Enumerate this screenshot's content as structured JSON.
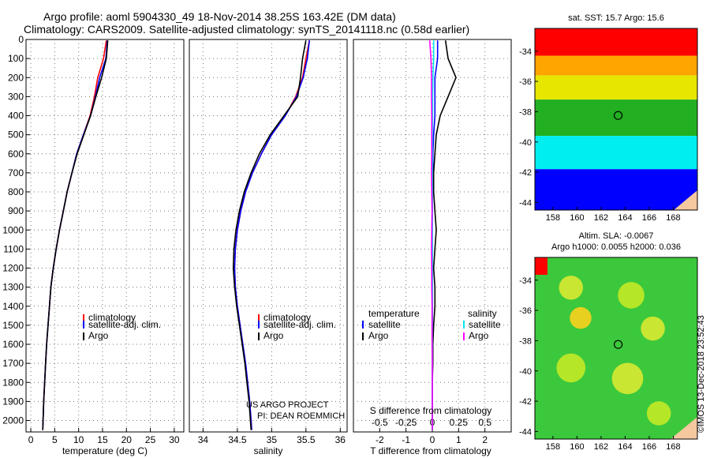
{
  "header": {
    "title_line1": "Argo profile: aoml 5904330_49 18-Nov-2014 38.25S 163.42E (DM data)",
    "title_line2": "Climatology: CARS2009. Satellite-adjusted climatology: synTS_20141118.nc (0.58d earlier)"
  },
  "colors": {
    "climatology": "#ff0000",
    "satellite": "#0000ff",
    "argo": "#000000",
    "satellite_s": "#00e5ee",
    "argo_s": "#ff00ff"
  },
  "chart_data": [
    {
      "type": "line",
      "name": "temperature",
      "xlabel": "temperature (deg C)",
      "xlim": [
        -1,
        32
      ],
      "ylim": [
        2060,
        0
      ],
      "xticks": [
        0,
        5,
        10,
        15,
        20,
        25,
        30
      ],
      "yticks": [
        0,
        100,
        200,
        300,
        400,
        500,
        600,
        700,
        800,
        900,
        1000,
        1100,
        1200,
        1300,
        1400,
        1500,
        1600,
        1700,
        1800,
        1900,
        2000
      ],
      "grid": true,
      "legend": [
        "climatology",
        "satellite-adj. clim.",
        "Argo"
      ],
      "series": [
        {
          "name": "climatology",
          "color": "#ff0000",
          "x": [
            15.8,
            15.2,
            14.0,
            13.3,
            12.4,
            11.0,
            9.6,
            8.6,
            7.6,
            6.8,
            6.0,
            5.3,
            4.7,
            4.2,
            3.9,
            3.6,
            3.3,
            3.1,
            2.9,
            2.7,
            2.5
          ],
          "y": [
            5,
            100,
            200,
            300,
            400,
            500,
            600,
            700,
            800,
            900,
            1000,
            1100,
            1200,
            1300,
            1400,
            1500,
            1600,
            1700,
            1800,
            1900,
            2050
          ]
        },
        {
          "name": "satellite-adj. clim.",
          "color": "#0000ff",
          "x": [
            16.0,
            15.7,
            14.4,
            13.5,
            12.5,
            11.0,
            9.6,
            8.6,
            7.6,
            6.8,
            6.0,
            5.3,
            4.7,
            4.2,
            3.9,
            3.6,
            3.3,
            3.1,
            2.9,
            2.7,
            2.5
          ],
          "y": [
            5,
            100,
            200,
            300,
            400,
            500,
            600,
            700,
            800,
            900,
            1000,
            1100,
            1200,
            1300,
            1400,
            1500,
            1600,
            1700,
            1800,
            1900,
            2050
          ]
        },
        {
          "name": "Argo",
          "color": "#000000",
          "x": [
            16.1,
            15.8,
            14.8,
            13.6,
            12.5,
            11.1,
            9.7,
            8.6,
            7.6,
            6.8,
            6.0,
            5.3,
            4.7,
            4.2,
            3.9,
            3.6,
            3.3,
            3.1,
            2.9,
            2.7,
            2.5
          ],
          "y": [
            5,
            100,
            200,
            300,
            400,
            500,
            600,
            700,
            800,
            900,
            1000,
            1100,
            1200,
            1300,
            1400,
            1500,
            1600,
            1700,
            1800,
            1900,
            2050
          ]
        }
      ]
    },
    {
      "type": "line",
      "name": "salinity",
      "xlabel": "salinity",
      "xlim": [
        33.8,
        36.1
      ],
      "ylim": [
        2060,
        0
      ],
      "xticks": [
        34,
        34.5,
        35,
        35.5,
        36
      ],
      "xticklabels": [
        "34",
        "34.5",
        "35",
        "35.5",
        "36"
      ],
      "grid": true,
      "legend": [
        "climatology",
        "satellite-adj. clim.",
        "Argo"
      ],
      "annotations": [
        "US ARGO PROJECT",
        "PI: DEAN ROEMMICH"
      ],
      "series": [
        {
          "name": "climatology",
          "color": "#ff0000",
          "x": [
            35.55,
            35.5,
            35.45,
            35.35,
            35.2,
            35.0,
            34.85,
            34.72,
            34.62,
            34.55,
            34.5,
            34.47,
            34.46,
            34.47,
            34.5,
            34.54,
            34.58,
            34.62,
            34.65,
            34.68,
            34.71
          ],
          "y": [
            5,
            100,
            200,
            300,
            400,
            500,
            600,
            700,
            800,
            900,
            1000,
            1100,
            1200,
            1300,
            1400,
            1500,
            1600,
            1700,
            1800,
            1900,
            2050
          ]
        },
        {
          "name": "satellite-adj. clim.",
          "color": "#0000ff",
          "x": [
            35.55,
            35.52,
            35.46,
            35.36,
            35.2,
            35.0,
            34.85,
            34.72,
            34.62,
            34.55,
            34.5,
            34.47,
            34.46,
            34.47,
            34.5,
            34.54,
            34.58,
            34.62,
            34.65,
            34.68,
            34.71
          ],
          "y": [
            5,
            100,
            200,
            300,
            400,
            500,
            600,
            700,
            800,
            900,
            1000,
            1100,
            1200,
            1300,
            1400,
            1500,
            1600,
            1700,
            1800,
            1900,
            2050
          ]
        },
        {
          "name": "Argo",
          "color": "#000000",
          "x": [
            35.5,
            35.45,
            35.42,
            35.38,
            35.18,
            34.98,
            34.82,
            34.7,
            34.6,
            34.53,
            34.48,
            34.45,
            34.44,
            34.46,
            34.49,
            34.53,
            34.57,
            34.61,
            34.64,
            34.67,
            34.7
          ],
          "y": [
            5,
            100,
            200,
            300,
            400,
            500,
            600,
            700,
            800,
            900,
            1000,
            1100,
            1200,
            1300,
            1400,
            1500,
            1600,
            1700,
            1800,
            1900,
            2050
          ]
        }
      ]
    },
    {
      "type": "line",
      "name": "difference from climatology",
      "xlabel": "T difference from climatology",
      "xlabel_top": "S difference from climatology",
      "xlim": [
        -3,
        3
      ],
      "ylim": [
        2060,
        0
      ],
      "xticks": [
        -2,
        -1,
        0,
        1,
        2
      ],
      "xticks_top": [
        -0.5,
        -0.25,
        0,
        0.25,
        0.5
      ],
      "xticklabels_top": [
        "-0.5",
        "-0.25",
        "0",
        "0.25",
        "0.5"
      ],
      "grid": true,
      "legend_t_title": "temperature",
      "legend_s_title": "salinity",
      "legend_t": [
        "satellite",
        "Argo"
      ],
      "legend_s": [
        "satellite",
        "Argo"
      ],
      "series": [
        {
          "name": "T satellite",
          "color": "#0000ff",
          "x": [
            0.2,
            0.2,
            0.1,
            0.1,
            0.1,
            0.05,
            0.02,
            0.02,
            0,
            0,
            0,
            0,
            0,
            0,
            0,
            0,
            0,
            0,
            0,
            0,
            0
          ],
          "y": [
            5,
            100,
            200,
            300,
            400,
            500,
            600,
            700,
            800,
            900,
            1000,
            1100,
            1200,
            1300,
            1400,
            1500,
            1600,
            1700,
            1800,
            1900,
            2050
          ]
        },
        {
          "name": "T Argo",
          "color": "#000000",
          "x": [
            0.5,
            0.6,
            0.9,
            0.6,
            0.3,
            0.15,
            0.1,
            0.05,
            0.05,
            0.1,
            0.15,
            0.1,
            0.05,
            0.1,
            0.1,
            0.05,
            0.02,
            0.02,
            0,
            0,
            0
          ],
          "y": [
            5,
            100,
            200,
            300,
            400,
            500,
            600,
            700,
            800,
            900,
            1000,
            1100,
            1200,
            1300,
            1400,
            1500,
            1600,
            1700,
            1800,
            1900,
            2050
          ]
        },
        {
          "name": "S satellite",
          "color": "#00e5ee",
          "x": [
            0.05,
            0.05,
            0.02,
            0.01,
            0.01,
            0,
            0,
            0,
            0,
            0,
            0,
            0,
            0,
            0,
            0,
            0,
            0,
            0,
            0,
            0,
            0
          ],
          "y": [
            5,
            100,
            200,
            300,
            400,
            500,
            600,
            700,
            800,
            900,
            1000,
            1100,
            1200,
            1300,
            1400,
            1500,
            1600,
            1700,
            1800,
            1900,
            2050
          ]
        },
        {
          "name": "S Argo",
          "color": "#ff00ff",
          "x": [
            -0.1,
            -0.05,
            -0.03,
            -0.03,
            -0.02,
            -0.02,
            -0.02,
            -0.03,
            -0.02,
            -0.01,
            -0.02,
            -0.03,
            -0.02,
            -0.02,
            -0.01,
            -0.01,
            -0.01,
            0,
            0,
            0,
            0
          ],
          "y": [
            5,
            100,
            200,
            300,
            400,
            500,
            600,
            700,
            800,
            900,
            1000,
            1100,
            1200,
            1300,
            1400,
            1500,
            1600,
            1700,
            1800,
            1900,
            2050
          ]
        }
      ]
    },
    {
      "type": "heatmap",
      "name": "sst map",
      "title": "sat. SST: 15.7 Argo: 15.6",
      "xticks": [
        158,
        160,
        162,
        164,
        166,
        168
      ],
      "yticks": [
        -34,
        -36,
        -38,
        -40,
        -42,
        -44
      ],
      "xlim": [
        156.5,
        170
      ],
      "ylim": [
        -44.5,
        -32.5
      ],
      "profile": {
        "lon": 163.42,
        "lat": -38.25
      },
      "bands": [
        {
          "lat_from": -32.5,
          "lat_to": -34.3,
          "color": "#ff0000"
        },
        {
          "lat_from": -34.3,
          "lat_to": -35.6,
          "color": "#ffa500"
        },
        {
          "lat_from": -35.6,
          "lat_to": -37.2,
          "color": "#e6e600"
        },
        {
          "lat_from": -37.2,
          "lat_to": -39.6,
          "color": "#22b022"
        },
        {
          "lat_from": -39.6,
          "lat_to": -41.8,
          "color": "#00eeee"
        },
        {
          "lat_from": -41.8,
          "lat_to": -44.5,
          "color": "#0000ff"
        }
      ]
    },
    {
      "type": "heatmap",
      "name": "sla map",
      "title_line1": "Altim. SLA: -0.0067",
      "title_line2": "Argo h1000: 0.0055 h2000: 0.036",
      "xticks": [
        158,
        160,
        162,
        164,
        166,
        168
      ],
      "yticks": [
        -34,
        -36,
        -38,
        -40,
        -42,
        -44
      ],
      "xlim": [
        156.5,
        170
      ],
      "ylim": [
        -44.5,
        -32.5
      ],
      "profile": {
        "lon": 163.42,
        "lat": -38.25
      },
      "blobs": [
        {
          "lon": 159.5,
          "lat": -34.5,
          "r": 1.0,
          "color": "#c8e632"
        },
        {
          "lon": 164.5,
          "lat": -35.0,
          "r": 1.1,
          "color": "#b6e628"
        },
        {
          "lon": 160.3,
          "lat": -36.5,
          "r": 0.9,
          "color": "#e8d020"
        },
        {
          "lon": 166.3,
          "lat": -37.2,
          "r": 1.0,
          "color": "#c8e632"
        },
        {
          "lon": 159.5,
          "lat": -39.8,
          "r": 1.2,
          "color": "#b6e628"
        },
        {
          "lon": 164.2,
          "lat": -40.5,
          "r": 1.3,
          "color": "#c8e632"
        },
        {
          "lon": 166.8,
          "lat": -42.8,
          "r": 1.0,
          "color": "#b6e628"
        }
      ]
    }
  ],
  "watermark": "©IMOS 13-Dec-2018 23:52:43"
}
